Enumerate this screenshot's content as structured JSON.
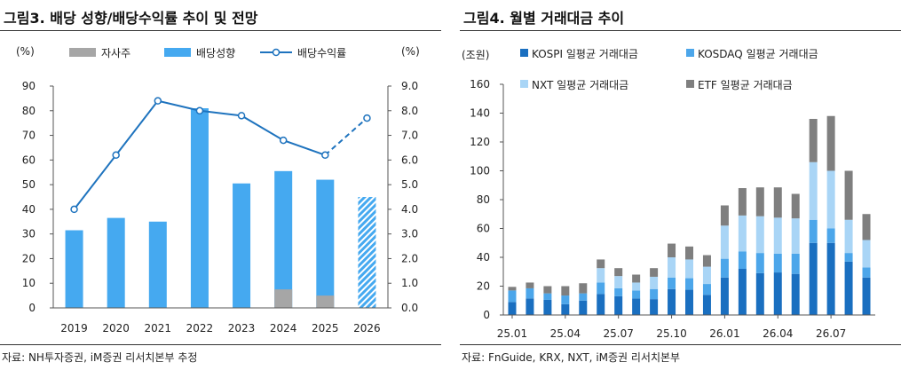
{
  "chart_data": [
    {
      "type": "bar+line",
      "title": "그림3.  배당 성향/배당수익률 추이 및 전망",
      "source": "자료: NH투자증권, iM증권 리서치본부 추정",
      "left_unit": "(%)",
      "right_unit": "(%)",
      "legend": [
        "자사주",
        "배당성향",
        "배당수익률"
      ],
      "categories": [
        "2019",
        "2020",
        "2021",
        "2022",
        "2023",
        "2024",
        "2025",
        "2026"
      ],
      "y_left": {
        "min": 0,
        "max": 90,
        "ticks": [
          "0",
          "10",
          "20",
          "30",
          "40",
          "50",
          "60",
          "70",
          "80",
          "90"
        ]
      },
      "y_right": {
        "min": 0,
        "max": 9,
        "ticks": [
          "0.0",
          "1.0",
          "2.0",
          "3.0",
          "4.0",
          "5.0",
          "6.0",
          "7.0",
          "8.0",
          "9.0"
        ]
      },
      "series": [
        {
          "name": "자사주",
          "values": [
            0,
            0,
            0,
            0,
            0,
            7.5,
            5,
            0
          ],
          "color": "#a6a6a6"
        },
        {
          "name": "배당성향",
          "values": [
            31.5,
            36.5,
            35,
            81,
            50.5,
            55.5,
            52,
            45
          ],
          "color": "#45a9f0",
          "forecast_from_index": 7
        },
        {
          "name": "배당수익률",
          "values": [
            4.0,
            6.2,
            8.4,
            8.0,
            7.8,
            6.8,
            6.2,
            7.7
          ],
          "color": "#1e73be",
          "axis": "right",
          "forecast_from_index": 6
        }
      ]
    },
    {
      "type": "stacked-bar",
      "title": "그림4.  월별 거래대금 추이",
      "source": "자료: FnGuide, KRX, NXT, iM증권 리서치본부",
      "unit": "(조원)",
      "y": {
        "min": 0,
        "max": 160,
        "ticks": [
          "0",
          "20",
          "40",
          "60",
          "80",
          "100",
          "120",
          "140",
          "160"
        ]
      },
      "x_tick_labels": [
        "25.01",
        "25.04",
        "25.07",
        "25.10",
        "26.01",
        "26.04",
        "26.07"
      ],
      "x_tick_every": 3,
      "series": [
        {
          "name": "KOSPI 일평균 거래대금",
          "color": "#1a6fc0",
          "values": [
            9,
            11.5,
            10.5,
            7.5,
            10,
            14.5,
            13,
            11.5,
            11,
            18,
            17.5,
            14,
            26,
            32,
            29,
            29.5,
            28.5,
            50,
            50,
            37,
            26
          ]
        },
        {
          "name": "KOSDAQ 일평균 거래대금",
          "color": "#4ca6ea",
          "values": [
            8,
            7,
            4.5,
            6,
            5,
            8,
            5.5,
            5.5,
            7,
            8,
            8,
            7.5,
            13,
            12,
            14,
            13,
            14,
            16,
            10,
            6,
            7
          ]
        },
        {
          "name": "NXT 일평균 거래대금",
          "color": "#a9d5f6",
          "values": [
            0,
            0,
            0,
            0,
            0,
            10,
            8.5,
            5.5,
            8.5,
            14,
            13,
            12,
            23,
            25,
            25.5,
            25,
            24.5,
            40,
            40,
            23,
            19
          ]
        },
        {
          "name": "ETF 일평균 거래대금",
          "color": "#7f7f7f",
          "values": [
            2.5,
            4,
            5,
            6.5,
            7,
            6,
            5.5,
            5.5,
            6,
            9.5,
            9,
            8,
            14,
            19,
            20,
            21,
            17,
            30,
            38,
            34,
            18
          ]
        }
      ]
    }
  ]
}
